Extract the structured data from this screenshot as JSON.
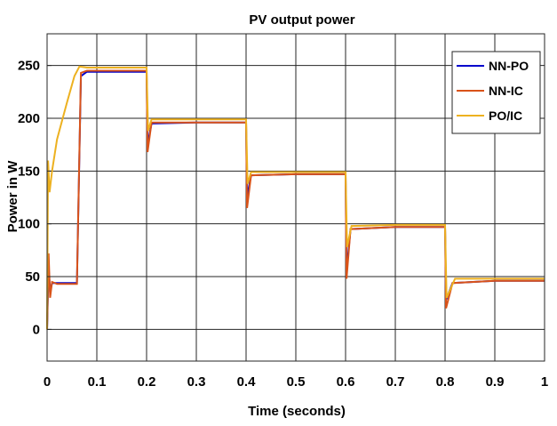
{
  "chart_data": {
    "type": "line",
    "title": "PV output power",
    "xlabel": "Time (seconds)",
    "ylabel": "Power in W",
    "xlim": [
      0,
      1
    ],
    "ylim": [
      -30,
      280
    ],
    "grid": true,
    "legend_position": "top-right",
    "xticks": [
      {
        "value": 0,
        "label": "0"
      },
      {
        "value": 0.1,
        "label": "0.1"
      },
      {
        "value": 0.2,
        "label": "0.2"
      },
      {
        "value": 0.3,
        "label": "0.3"
      },
      {
        "value": 0.4,
        "label": "0.4"
      },
      {
        "value": 0.5,
        "label": "0.5"
      },
      {
        "value": 0.6,
        "label": "0.6"
      },
      {
        "value": 0.7,
        "label": "0.7"
      },
      {
        "value": 0.8,
        "label": "0.8"
      },
      {
        "value": 0.9,
        "label": "0.9"
      },
      {
        "value": 1,
        "label": "1"
      }
    ],
    "yticks": [
      {
        "value": 0,
        "label": "0"
      },
      {
        "value": 50,
        "label": "50"
      },
      {
        "value": 100,
        "label": "100"
      },
      {
        "value": 150,
        "label": "150"
      },
      {
        "value": 200,
        "label": "200"
      },
      {
        "value": 250,
        "label": "250"
      }
    ],
    "series": [
      {
        "name": "NN-PO",
        "color": "#0000cc",
        "x": [
          0,
          0.003,
          0.006,
          0.01,
          0.02,
          0.04,
          0.06,
          0.068,
          0.08,
          0.1,
          0.15,
          0.1999,
          0.2,
          0.202,
          0.21,
          0.3,
          0.3999,
          0.4,
          0.402,
          0.41,
          0.5,
          0.5999,
          0.6,
          0.602,
          0.61,
          0.7,
          0.7999,
          0.8,
          0.802,
          0.815,
          0.9,
          1.0
        ],
        "y": [
          0,
          60,
          35,
          44,
          44,
          44,
          44,
          240,
          244,
          244,
          244,
          244,
          244,
          175,
          195,
          196,
          196,
          196,
          125,
          146,
          147,
          147,
          147,
          55,
          95,
          97,
          97,
          97,
          28,
          44,
          46,
          46
        ]
      },
      {
        "name": "NN-IC",
        "color": "#d95319",
        "x": [
          0,
          0.003,
          0.006,
          0.01,
          0.02,
          0.04,
          0.06,
          0.068,
          0.08,
          0.1,
          0.15,
          0.1999,
          0.2,
          0.202,
          0.21,
          0.3,
          0.3999,
          0.4,
          0.402,
          0.41,
          0.5,
          0.5999,
          0.6,
          0.602,
          0.61,
          0.7,
          0.7999,
          0.8,
          0.802,
          0.815,
          0.9,
          1.0
        ],
        "y": [
          0,
          72,
          30,
          45,
          43,
          43,
          43,
          243,
          245,
          245,
          245,
          245,
          245,
          168,
          196,
          196,
          196,
          196,
          115,
          146,
          147,
          147,
          147,
          48,
          95,
          97,
          97,
          97,
          20,
          44,
          46,
          46
        ]
      },
      {
        "name": "PO/IC",
        "color": "#edb120",
        "x": [
          0,
          0.002,
          0.005,
          0.01,
          0.02,
          0.04,
          0.055,
          0.065,
          0.08,
          0.1,
          0.15,
          0.1999,
          0.2,
          0.203,
          0.21,
          0.3,
          0.3999,
          0.4,
          0.403,
          0.41,
          0.5,
          0.5999,
          0.6,
          0.603,
          0.612,
          0.7,
          0.7999,
          0.8,
          0.803,
          0.82,
          0.9,
          1.0
        ],
        "y": [
          0,
          160,
          130,
          150,
          180,
          215,
          240,
          249,
          248,
          248,
          248,
          248,
          248,
          188,
          199,
          199,
          199,
          199,
          138,
          149,
          149,
          149,
          149,
          78,
          98,
          99,
          99,
          99,
          30,
          48,
          48,
          48
        ]
      }
    ]
  }
}
